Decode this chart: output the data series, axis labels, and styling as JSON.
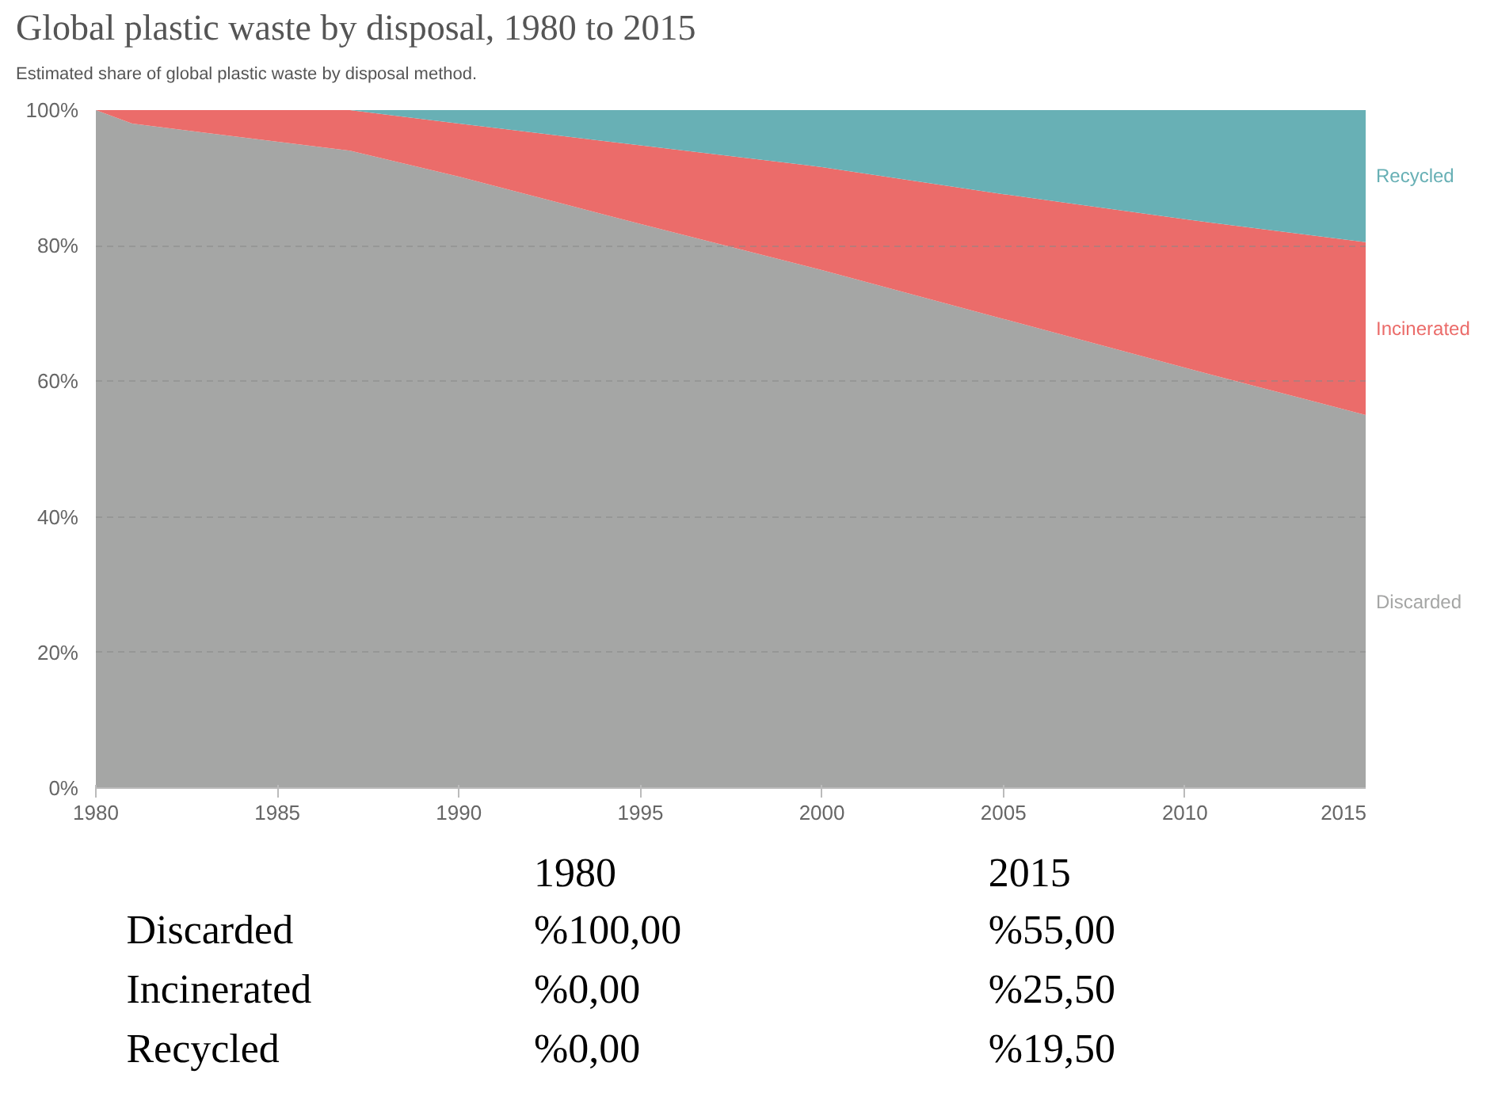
{
  "chart_data": {
    "type": "area",
    "stacked": true,
    "title": "Global plastic waste by disposal, 1980 to 2015",
    "subtitle": "Estimated share of global plastic waste by disposal method.",
    "x": [
      1980,
      1981,
      1987,
      1990,
      1995,
      2000,
      2005,
      2010,
      2015
    ],
    "series": [
      {
        "name": "Discarded",
        "color": "#a5a6a5",
        "values": [
          100,
          98,
          94,
          90.2,
          83.2,
          76.4,
          69.2,
          62,
          55
        ]
      },
      {
        "name": "Incinerated",
        "color": "#eb6c6a",
        "values": [
          0,
          2,
          6,
          7.8,
          11.6,
          15.2,
          18.4,
          21.9,
          25.5
        ]
      },
      {
        "name": "Recycled",
        "color": "#68b0b5",
        "values": [
          0,
          0,
          0,
          2,
          5.2,
          8.4,
          12.4,
          16.1,
          19.5
        ]
      }
    ],
    "annotations": [
      "1980",
      "2015",
      "Discarded",
      "%100,00",
      "%55,00",
      "Incinerated",
      "%0,00",
      "%25,50",
      "Recycled",
      "%0,00",
      "%19,50"
    ],
    "xlim": [
      1980,
      2015
    ],
    "xticks": [
      1980,
      1985,
      1990,
      1995,
      2000,
      2005,
      2010,
      2015
    ],
    "ylim": [
      0,
      100
    ],
    "yticks": [
      {
        "value": 0,
        "label": "0%"
      },
      {
        "value": 20,
        "label": "20%"
      },
      {
        "value": 40,
        "label": "40%"
      },
      {
        "value": 60,
        "label": "60%"
      },
      {
        "value": 80,
        "label": "80%"
      },
      {
        "value": 100,
        "label": "100%"
      }
    ],
    "grid": "y",
    "legend": false
  }
}
